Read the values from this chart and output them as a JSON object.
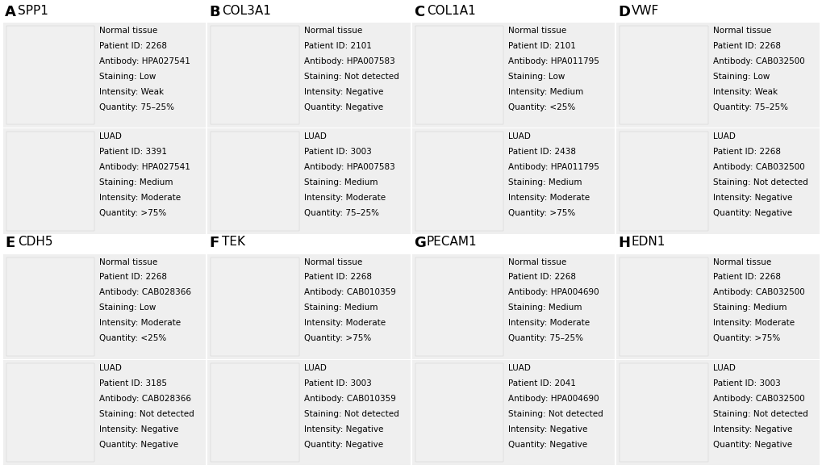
{
  "bg_color": "#ffffff",
  "cell_bg": "#efefef",
  "img_bg": "#e8e8e8",
  "text_fontsize": 7.5,
  "label_fontsize": 13,
  "gene_fontsize": 11,
  "panels": [
    {
      "label": "A",
      "gene": "SPP1",
      "rows": [
        {
          "type": "Normal tissue",
          "patient_id": "2268",
          "antibody": "HPA027541",
          "staining": "Low",
          "intensity": "Weak",
          "quantity": "75–25%"
        },
        {
          "type": "LUAD",
          "patient_id": "3391",
          "antibody": "HPA027541",
          "staining": "Medium",
          "intensity": "Moderate",
          "quantity": ">75%"
        }
      ]
    },
    {
      "label": "B",
      "gene": "COL3A1",
      "rows": [
        {
          "type": "Normal tissue",
          "patient_id": "2101",
          "antibody": "HPA007583",
          "staining": "Not detected",
          "intensity": "Negative",
          "quantity": "Negative"
        },
        {
          "type": "LUAD",
          "patient_id": "3003",
          "antibody": "HPA007583",
          "staining": "Medium",
          "intensity": "Moderate",
          "quantity": "75–25%"
        }
      ]
    },
    {
      "label": "C",
      "gene": "COL1A1",
      "rows": [
        {
          "type": "Normal tissue",
          "patient_id": "2101",
          "antibody": "HPA011795",
          "staining": "Low",
          "intensity": "Medium",
          "quantity": "<25%"
        },
        {
          "type": "LUAD",
          "patient_id": "2438",
          "antibody": "HPA011795",
          "staining": "Medium",
          "intensity": "Moderate",
          "quantity": ">75%"
        }
      ]
    },
    {
      "label": "D",
      "gene": "VWF",
      "rows": [
        {
          "type": "Normal tissue",
          "patient_id": "2268",
          "antibody": "CAB032500",
          "staining": "Low",
          "intensity": "Weak",
          "quantity": "75–25%"
        },
        {
          "type": "LUAD",
          "patient_id": "2268",
          "antibody": "CAB032500",
          "staining": "Not detected",
          "intensity": "Negative",
          "quantity": "Negative"
        }
      ]
    },
    {
      "label": "E",
      "gene": "CDH5",
      "rows": [
        {
          "type": "Normal tissue",
          "patient_id": "2268",
          "antibody": "CAB028366",
          "staining": "Low",
          "intensity": "Moderate",
          "quantity": "<25%"
        },
        {
          "type": "LUAD",
          "patient_id": "3185",
          "antibody": "CAB028366",
          "staining": "Not detected",
          "intensity": "Negative",
          "quantity": "Negative"
        }
      ]
    },
    {
      "label": "F",
      "gene": "TEK",
      "rows": [
        {
          "type": "Normal tissue",
          "patient_id": "2268",
          "antibody": "CAB010359",
          "staining": "Medium",
          "intensity": "Moderate",
          "quantity": ">75%"
        },
        {
          "type": "LUAD",
          "patient_id": "3003",
          "antibody": "CAB010359",
          "staining": "Not detected",
          "intensity": "Negative",
          "quantity": "Negative"
        }
      ]
    },
    {
      "label": "G",
      "gene": "PECAM1",
      "rows": [
        {
          "type": "Normal tissue",
          "patient_id": "2268",
          "antibody": "HPA004690",
          "staining": "Medium",
          "intensity": "Moderate",
          "quantity": "75–25%"
        },
        {
          "type": "LUAD",
          "patient_id": "2041",
          "antibody": "HPA004690",
          "staining": "Not detected",
          "intensity": "Negative",
          "quantity": "Negative"
        }
      ]
    },
    {
      "label": "H",
      "gene": "EDN1",
      "rows": [
        {
          "type": "Normal tissue",
          "patient_id": "2268",
          "antibody": "CAB032500",
          "staining": "Medium",
          "intensity": "Moderate",
          "quantity": ">75%"
        },
        {
          "type": "LUAD",
          "patient_id": "3003",
          "antibody": "CAB032500",
          "staining": "Not detected",
          "intensity": "Negative",
          "quantity": "Negative"
        }
      ]
    }
  ]
}
